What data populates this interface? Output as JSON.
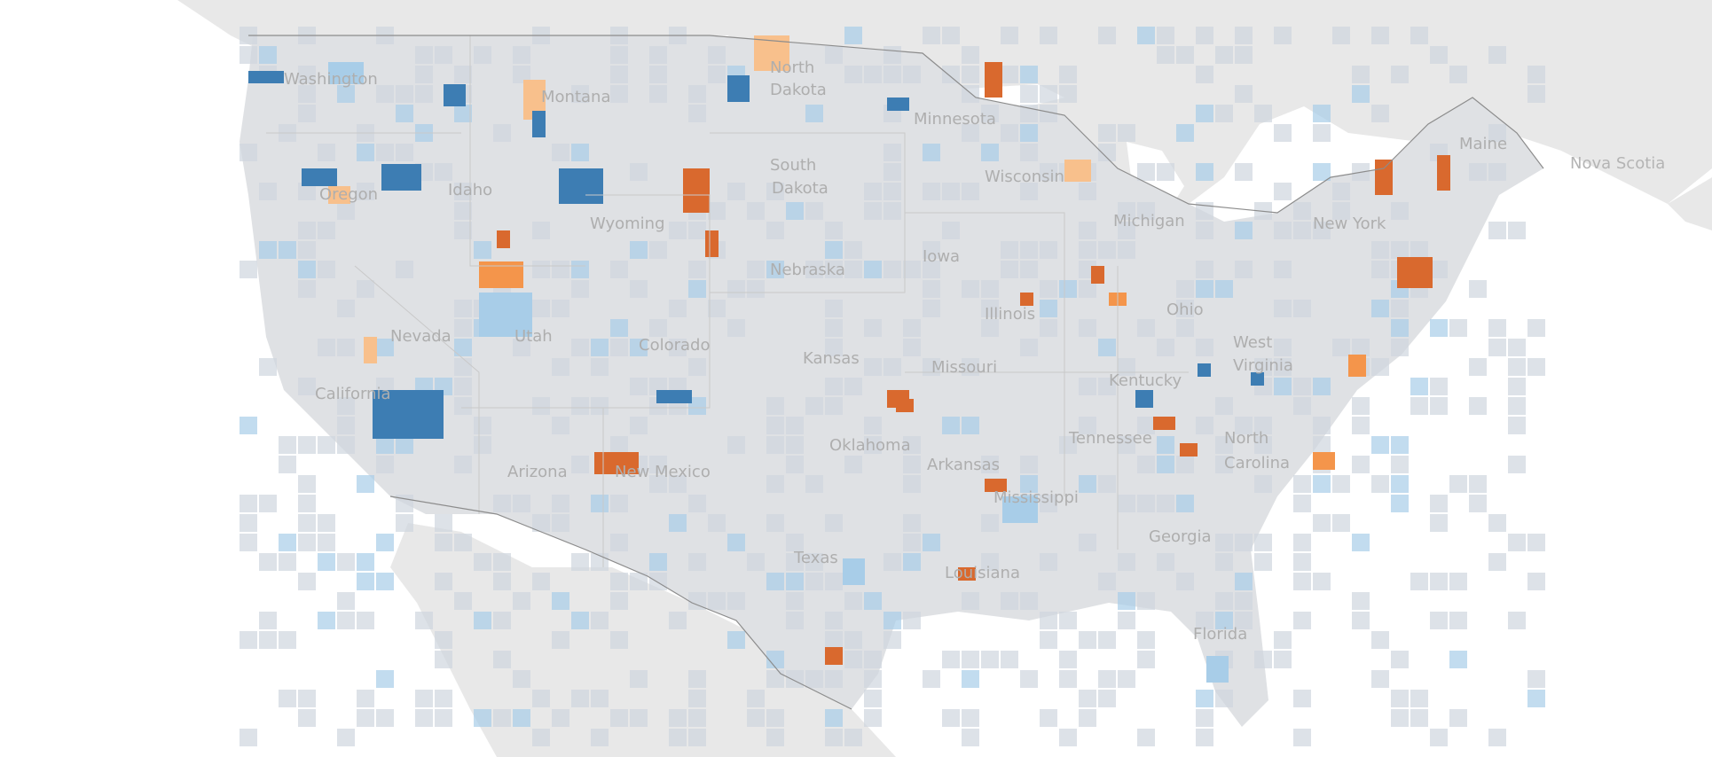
{
  "map": {
    "colors": {
      "background": "#ffffff",
      "land_foreign": "#e8e8e8",
      "land_us": "#dfe1e4",
      "county_default": "#cfd6de",
      "water": "#ffffff",
      "dark_blue": "#3d7db3",
      "light_blue": "#a8cde8",
      "dark_orange": "#d9692e",
      "mid_orange": "#f4954b",
      "light_orange": "#f8c08c",
      "state_border": "#c9c9c9",
      "country_border": "#8c8c8c"
    },
    "state_labels": [
      "Washington",
      "Montana",
      "North",
      "Dakota",
      "Minnesota",
      "Oregon",
      "Idaho",
      "South",
      "Dakota",
      "Wisconsin",
      "Michigan",
      "Wyoming",
      "Iowa",
      "Nebraska",
      "New York",
      "Maine",
      "Nevada",
      "Utah",
      "Colorado",
      "Illinois",
      "Ohio",
      "Kansas",
      "Missouri",
      "West",
      "Virginia",
      "Kentucky",
      "California",
      "Oklahoma",
      "Tennessee",
      "North",
      "Carolina",
      "Arizona",
      "New Mexico",
      "Arkansas",
      "Mississippi",
      "Georgia",
      "Texas",
      "Louisiana",
      "Florida"
    ],
    "foreign_labels": [
      "Nova Scotia"
    ]
  }
}
